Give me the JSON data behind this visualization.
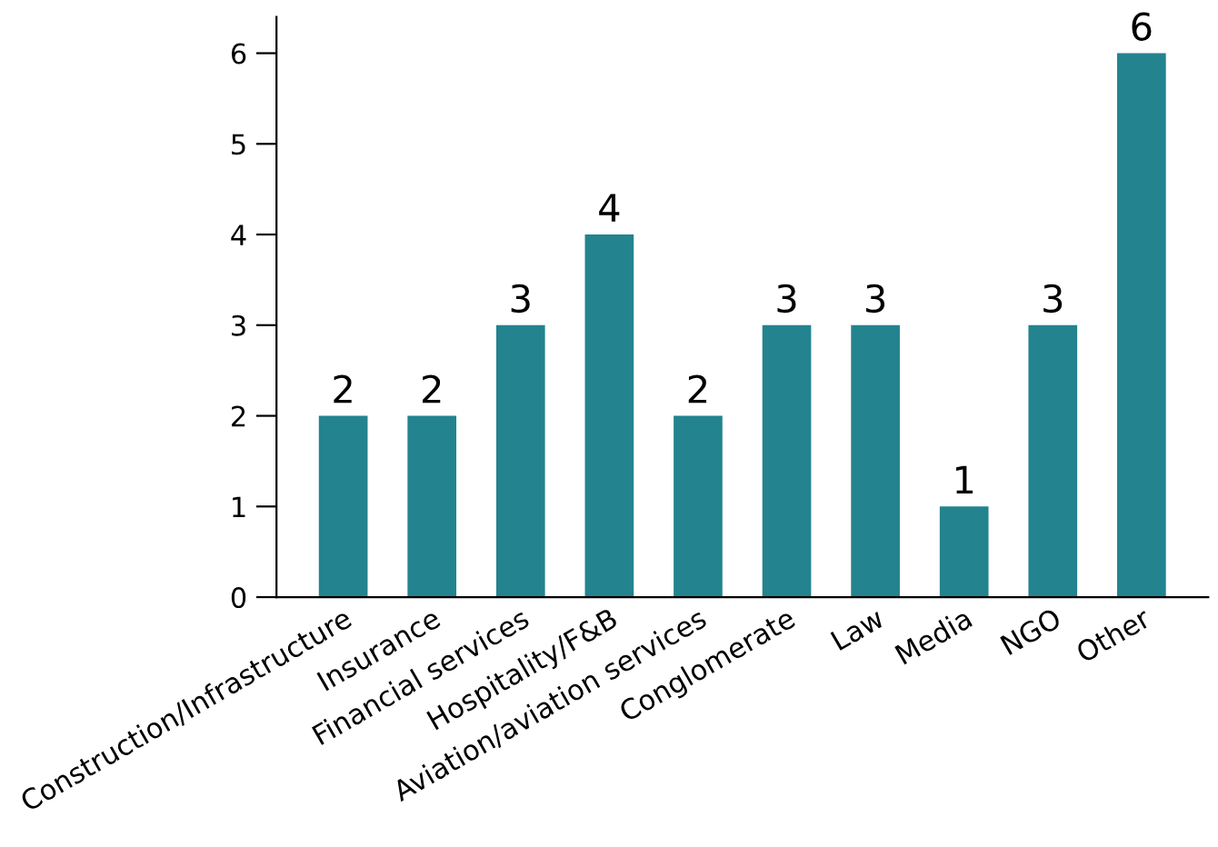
{
  "chart_data": {
    "type": "bar",
    "categories": [
      "Construction/Infrastructure",
      "Insurance",
      "Financial services",
      "Hospitality/F&B",
      "Aviation/aviation services",
      "Conglomerate",
      "Law",
      "Media",
      "NGO",
      "Other"
    ],
    "values": [
      2,
      2,
      3,
      4,
      2,
      3,
      3,
      1,
      3,
      6
    ],
    "color": "#23838f",
    "ylim": [
      0,
      6.4
    ],
    "yticks": [
      0,
      1,
      2,
      3,
      4,
      5,
      6
    ],
    "data_labels": true,
    "grid": false,
    "legend": false
  }
}
